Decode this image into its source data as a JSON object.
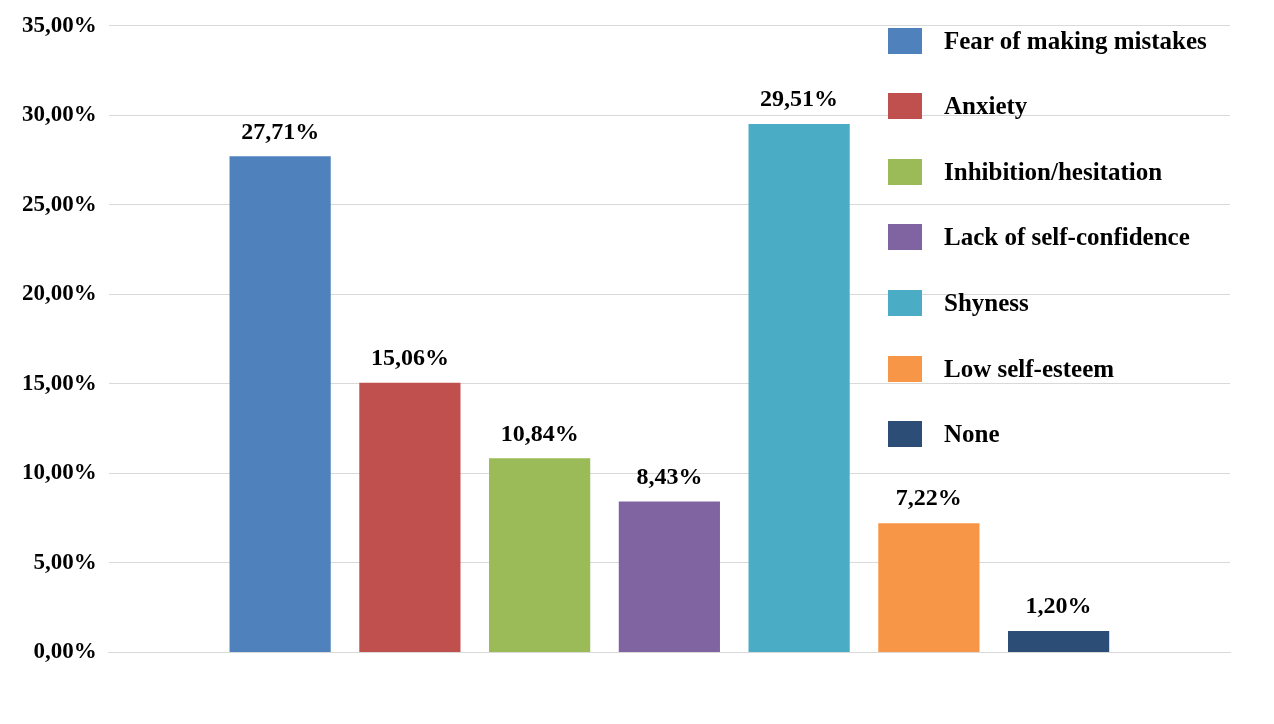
{
  "chart_data": {
    "type": "bar",
    "categories": [
      null
    ],
    "series": [
      {
        "name": "Fear of making mistakes",
        "color": "#4f81bd",
        "values": [
          27.71
        ],
        "value_labels": [
          "27,71%"
        ]
      },
      {
        "name": "Anxiety",
        "color": "#c0504d",
        "values": [
          15.06
        ],
        "value_labels": [
          "15,06%"
        ]
      },
      {
        "name": "Inhibition/hesitation",
        "color": "#9bbb59",
        "values": [
          10.84
        ],
        "value_labels": [
          "10,84%"
        ]
      },
      {
        "name": "Lack of self-confidence",
        "color": "#8064a2",
        "values": [
          8.43
        ],
        "value_labels": [
          "8,43%"
        ]
      },
      {
        "name": "Shyness",
        "color": "#4bacc6",
        "values": [
          29.51
        ],
        "value_labels": [
          "29,51%"
        ]
      },
      {
        "name": "Low self-esteem",
        "color": "#f79646",
        "values": [
          7.22
        ],
        "value_labels": [
          "7,22%"
        ]
      },
      {
        "name": "None",
        "color": "#2c4d75",
        "values": [
          1.2
        ],
        "value_labels": [
          "1,20%"
        ]
      }
    ],
    "ylim": [
      0,
      35
    ],
    "yticks": [
      {
        "value": 0,
        "label": "0,00%"
      },
      {
        "value": 5,
        "label": "5,00%"
      },
      {
        "value": 10,
        "label": "10,00%"
      },
      {
        "value": 15,
        "label": "15,00%"
      },
      {
        "value": 20,
        "label": "20,00%"
      },
      {
        "value": 25,
        "label": "25,00%"
      },
      {
        "value": 30,
        "label": "30,00%"
      },
      {
        "value": 35,
        "label": "35,00%"
      }
    ],
    "grid": "y",
    "legend": "top right"
  }
}
